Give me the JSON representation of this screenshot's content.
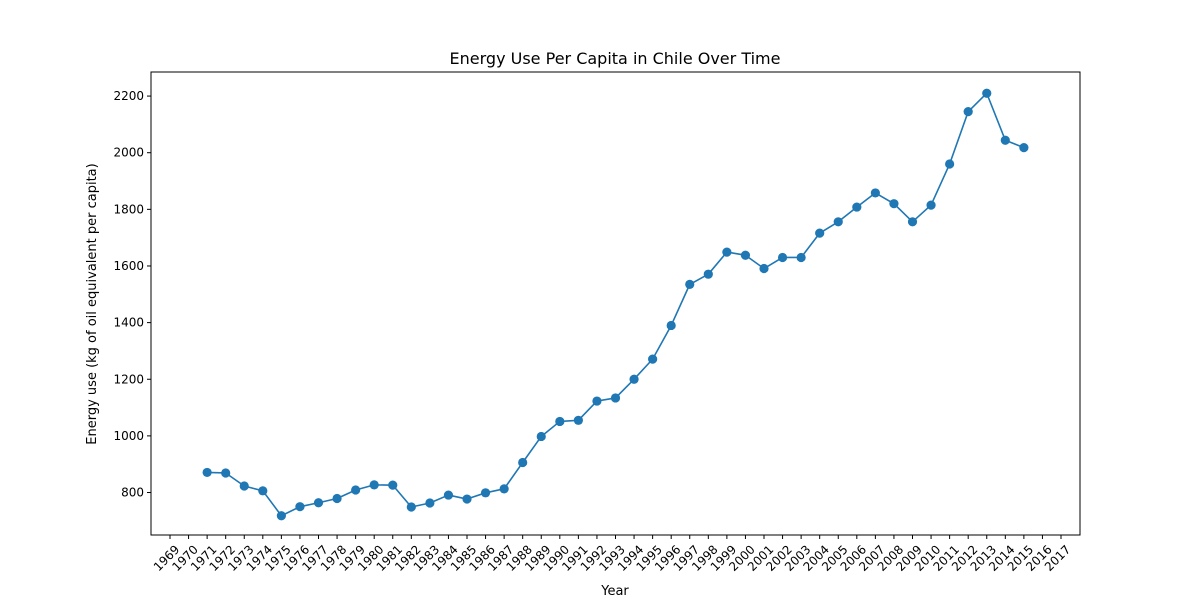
{
  "chart_data": {
    "type": "line",
    "title": "Energy Use Per Capita in Chile Over Time",
    "xlabel": "Year",
    "ylabel": "Energy use (kg of oil equivalent per capita)",
    "xlim": [
      1969,
      2017
    ],
    "ylim": [
      650,
      2285
    ],
    "x_ticks": [
      1969,
      1970,
      1971,
      1972,
      1973,
      1974,
      1975,
      1976,
      1977,
      1978,
      1979,
      1980,
      1981,
      1982,
      1983,
      1984,
      1985,
      1986,
      1987,
      1988,
      1989,
      1990,
      1991,
      1992,
      1993,
      1994,
      1995,
      1996,
      1997,
      1998,
      1999,
      2000,
      2001,
      2002,
      2003,
      2004,
      2005,
      2006,
      2007,
      2008,
      2009,
      2010,
      2011,
      2012,
      2013,
      2014,
      2015,
      2016,
      2017
    ],
    "y_ticks": [
      800,
      1000,
      1200,
      1400,
      1600,
      1800,
      2000,
      2200
    ],
    "grid": false,
    "marker": "circle",
    "color": "#1f77b4",
    "series": [
      {
        "x": [
          1971,
          1972,
          1973,
          1974,
          1975,
          1976,
          1977,
          1978,
          1979,
          1980,
          1981,
          1982,
          1983,
          1984,
          1985,
          1986,
          1987,
          1988,
          1989,
          1990,
          1991,
          1992,
          1993,
          1994,
          1995,
          1996,
          1997,
          1998,
          1999,
          2000,
          2001,
          2002,
          2003,
          2004,
          2005,
          2006,
          2007,
          2008,
          2009,
          2010,
          2011,
          2012,
          2013,
          2014,
          2015
        ],
        "values": [
          871,
          869,
          823,
          806,
          718,
          750,
          764,
          779,
          809,
          827,
          826,
          749,
          763,
          791,
          777,
          799,
          813,
          906,
          998,
          1051,
          1055,
          1123,
          1134,
          1200,
          1271,
          1390,
          1535,
          1571,
          1649,
          1638,
          1591,
          1630,
          1630,
          1716,
          1756,
          1808,
          1858,
          1820,
          1756,
          1815,
          1960,
          2145,
          2210,
          2044,
          2018
        ]
      }
    ]
  }
}
